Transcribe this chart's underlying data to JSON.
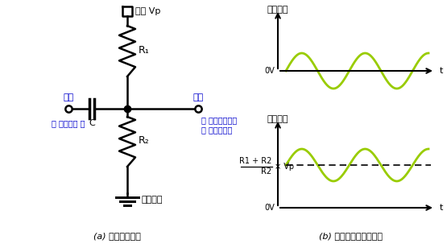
{
  "bg_color": "#ffffff",
  "circuit_color": "#000000",
  "blue_color": "#0000cc",
  "green_color": "#99cc00",
  "title_a": "(a) バイアス回路",
  "title_b": "(b) 入力電圧と出力電圧",
  "label_power": "電源 Vp",
  "label_r1": "R₁",
  "label_r2": "R₂",
  "label_input": "入力",
  "label_output": "出力",
  "label_cap": "C",
  "label_ground": "グランド",
  "label_signal_in": "（ 信号電圧 ）",
  "label_bias_out_line1": "（ バイアス電圧",
  "label_bias_out_line2": "＋ 信号電圧）",
  "label_vin": "入力電圧",
  "label_vout": "出力電圧",
  "label_0v": "0V",
  "label_t": "t",
  "frac_top": "R2",
  "frac_bot": "R1 + R2",
  "label_vp": "× Vp"
}
